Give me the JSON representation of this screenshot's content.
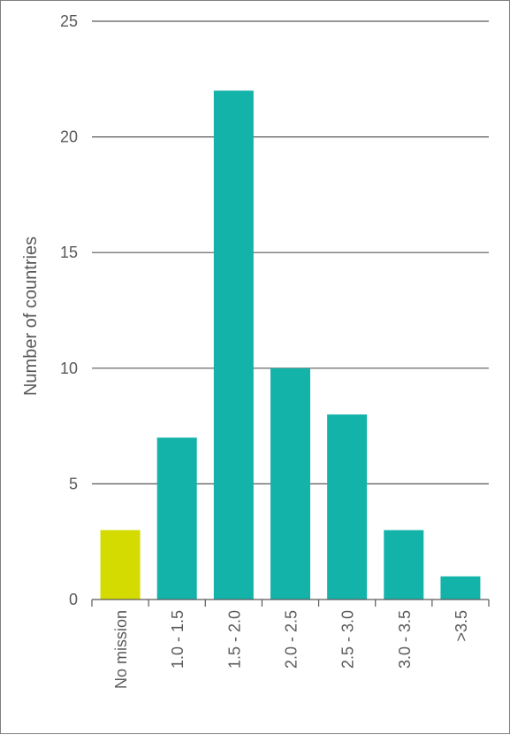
{
  "chart_data": {
    "type": "bar",
    "ylabel": "Number of countries",
    "xlabel": "",
    "ylim": [
      0,
      25
    ],
    "yticks": [
      0,
      5,
      10,
      15,
      20,
      25
    ],
    "categories": [
      "No mission",
      "1.0 - 1.5",
      "1.5 - 2.0",
      "2.0 - 2.5",
      "2.5 - 3.0",
      "3.0 - 3.5",
      ">3.5"
    ],
    "values": [
      3,
      7,
      22,
      10,
      8,
      3,
      1
    ],
    "bar_colors": [
      "#d4db00",
      "#14b3aa",
      "#14b3aa",
      "#14b3aa",
      "#14b3aa",
      "#14b3aa",
      "#14b3aa"
    ],
    "grid": true,
    "legend": "none",
    "gridline_color": "#595959",
    "axis_color": "#595959",
    "text_color": "#595959"
  }
}
